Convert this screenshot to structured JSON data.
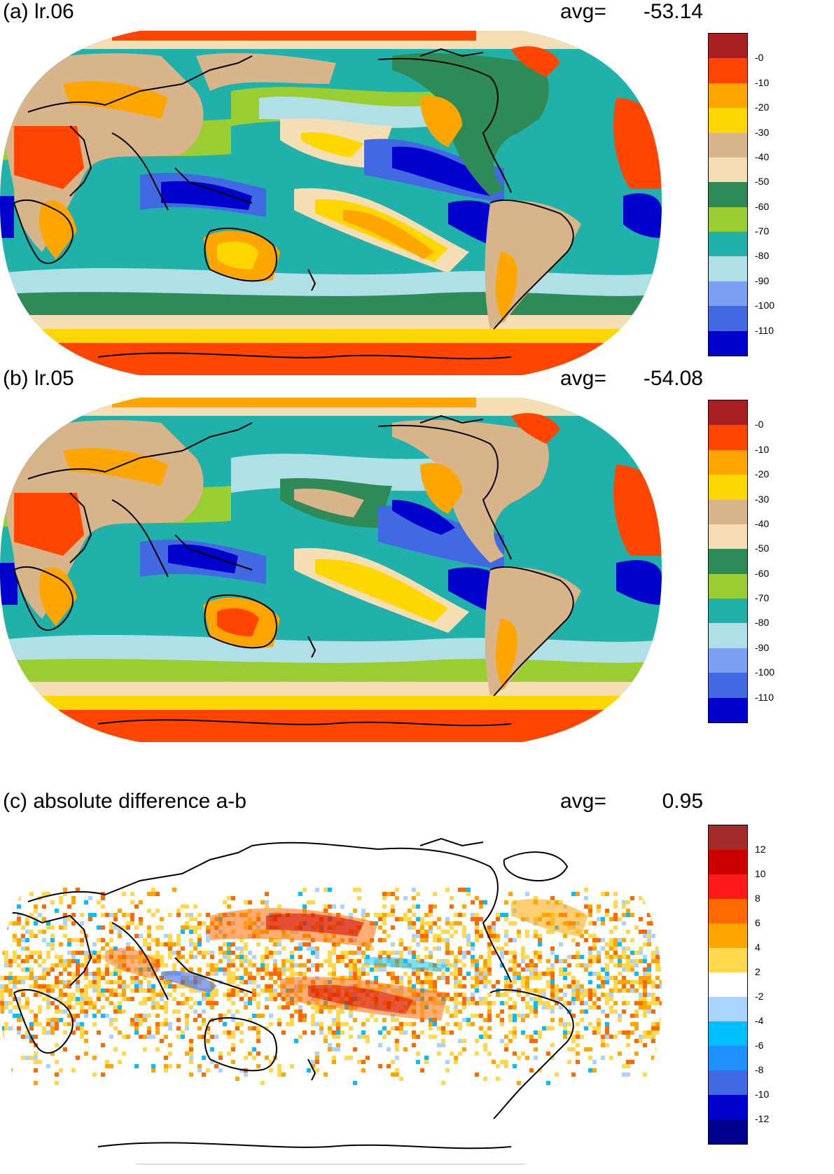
{
  "panels": [
    {
      "title": "(a) lr.06",
      "avg_label": "avg=",
      "avg_value": "-53.14",
      "colorbar": {
        "colors": [
          "#a81f22",
          "#ff4500",
          "#ffa500",
          "#ffd700",
          "#d8b48a",
          "#f5deb3",
          "#2e8b57",
          "#9acd32",
          "#20b2aa",
          "#b0e0e6",
          "#7b9ff2",
          "#4169e1",
          "#0000cd"
        ],
        "labels": [
          "-0",
          "-10",
          "-20",
          "-30",
          "-40",
          "-50",
          "-60",
          "-70",
          "-80",
          "-90",
          "-100",
          "-110"
        ]
      }
    },
    {
      "title": "(b) lr.05",
      "avg_label": "avg=",
      "avg_value": "-54.08",
      "colorbar": {
        "colors": [
          "#a81f22",
          "#ff4500",
          "#ffa500",
          "#ffd700",
          "#d8b48a",
          "#f5deb3",
          "#2e8b57",
          "#9acd32",
          "#20b2aa",
          "#b0e0e6",
          "#7b9ff2",
          "#4169e1",
          "#0000cd"
        ],
        "labels": [
          "-0",
          "-10",
          "-20",
          "-30",
          "-40",
          "-50",
          "-60",
          "-70",
          "-80",
          "-90",
          "-100",
          "-110"
        ]
      }
    },
    {
      "title": "(c) absolute difference a-b",
      "avg_label": "avg=",
      "avg_value": "0.95",
      "colorbar": {
        "colors": [
          "#a52a2a",
          "#cd0000",
          "#ff1a1a",
          "#ff6a00",
          "#ffa500",
          "#ffd84d",
          "#ffffff",
          "#aad4ff",
          "#00bfff",
          "#1e90ff",
          "#4169e1",
          "#0000cd",
          "#000090"
        ],
        "labels": [
          "12",
          "10",
          "8",
          "6",
          "4",
          "2",
          "-2",
          "-4",
          "-6",
          "-8",
          "-10",
          "-12"
        ]
      }
    }
  ]
}
